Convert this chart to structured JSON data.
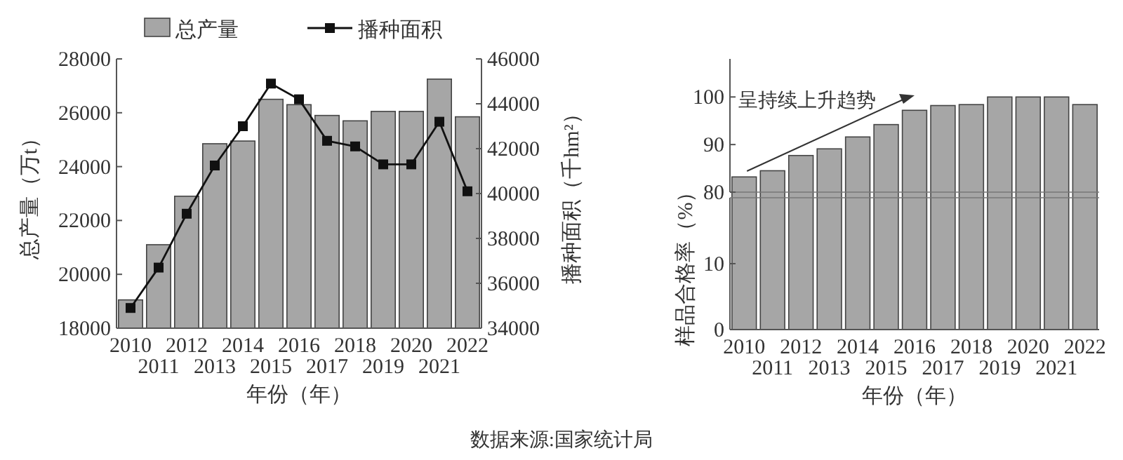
{
  "chart_data": [
    {
      "type": "bar",
      "categories": [
        "2010",
        "2011",
        "2012",
        "2013",
        "2014",
        "2015",
        "2016",
        "2017",
        "2018",
        "2019",
        "2020",
        "2021",
        "2022"
      ],
      "series": [
        {
          "name": "总产量",
          "type": "bar",
          "color": "#a6a6a6",
          "values": [
            19050,
            21100,
            22900,
            24850,
            24950,
            26500,
            26300,
            25900,
            25700,
            26050,
            26050,
            27250,
            25850
          ]
        },
        {
          "name": "播种面积",
          "type": "line",
          "axis": "y2",
          "color": "#111111",
          "values": [
            34900,
            36700,
            39100,
            41250,
            43000,
            44900,
            44200,
            42350,
            42100,
            41300,
            41300,
            43200,
            40100
          ]
        }
      ],
      "marker": "square",
      "ylim": [
        18000,
        28000
      ],
      "yticks": [
        18000,
        20000,
        22000,
        24000,
        26000,
        28000
      ],
      "y2lim": [
        34000,
        46000
      ],
      "y2ticks": [
        34000,
        36000,
        38000,
        40000,
        42000,
        44000,
        46000
      ],
      "ylabel": "总产量（万t）",
      "y2label": "播种面积（千hm²）",
      "xlabel": "年份（年）",
      "legend": "top",
      "annotations": [
        "数据来源:国家统计局"
      ]
    },
    {
      "type": "bar",
      "categories": [
        "2010",
        "2011",
        "2012",
        "2013",
        "2014",
        "2015",
        "2016",
        "2017",
        "2018",
        "2019",
        "2020",
        "2021",
        "2022"
      ],
      "color": "#a6a6a6",
      "values": [
        83.2,
        84.5,
        87.7,
        89.1,
        91.6,
        94.2,
        97.2,
        98.2,
        98.4,
        100,
        100,
        100,
        98.4
      ],
      "ylim": [
        80,
        108
      ],
      "yticks": [
        80,
        90,
        100
      ],
      "tick_labels": "y",
      "annotations": [
        "呈持续上升趋势"
      ]
    },
    {
      "type": "bar",
      "categories": [
        "2010",
        "2011",
        "2012",
        "2013",
        "2014",
        "2015",
        "2016",
        "2017",
        "2018",
        "2019",
        "2020",
        "2021",
        "2022"
      ],
      "ylim": [
        0,
        20
      ],
      "yticks": [
        0,
        10
      ],
      "xlabel": "年份（年）",
      "ylabel": "样品合格率（%）"
    }
  ]
}
